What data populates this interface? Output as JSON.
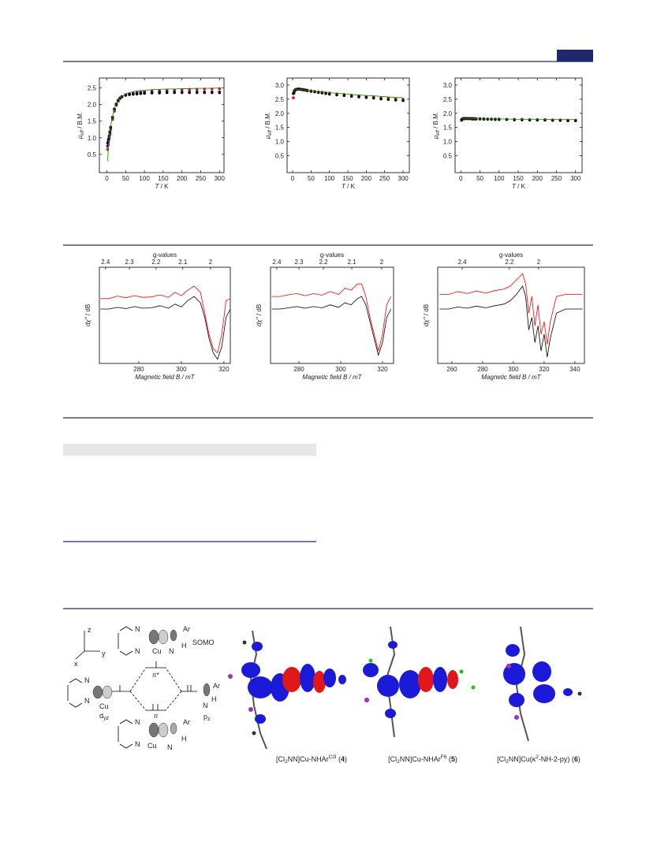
{
  "chart_data": [
    {
      "type": "scatter",
      "xlabel": [
        "T",
        " / K"
      ],
      "ylabel": [
        "μ",
        "eff",
        " / B.M."
      ],
      "x": [
        2,
        4,
        6,
        8,
        10,
        15,
        20,
        25,
        30,
        35,
        40,
        50,
        60,
        70,
        80,
        90,
        100,
        120,
        140,
        160,
        180,
        200,
        220,
        240,
        260,
        280,
        300
      ],
      "xlim": [
        -20,
        312
      ],
      "xticks": [
        0,
        50,
        100,
        150,
        200,
        250,
        300
      ],
      "ylim": [
        -0.05,
        2.8
      ],
      "yticks": [
        0.5,
        {
          "value": 1,
          "label": "1.0"
        },
        1.5,
        {
          "value": 2,
          "label": "2.0"
        },
        2.5
      ],
      "series": [
        {
          "kind": "points",
          "color": "#ff0000",
          "values": [
            0.65,
            0.8,
            0.95,
            1.1,
            1.25,
            1.55,
            1.8,
            1.98,
            2.1,
            2.18,
            2.23,
            2.3,
            2.33,
            2.35,
            2.37,
            2.38,
            2.39,
            2.41,
            2.42,
            2.43,
            2.44,
            2.45,
            2.46,
            2.46,
            2.47,
            2.47,
            2.48
          ]
        },
        {
          "kind": "points",
          "color": "#0000ff",
          "values": [
            0.75,
            0.88,
            1.0,
            1.15,
            1.3,
            1.6,
            1.85,
            2.0,
            2.12,
            2.2,
            2.24,
            2.29,
            2.31,
            2.33,
            2.34,
            2.35,
            2.36,
            2.37,
            2.38,
            2.38,
            2.38,
            2.38,
            2.38,
            2.38,
            2.38,
            2.38,
            2.38
          ]
        },
        {
          "kind": "points",
          "color": "#000000",
          "values": [
            0.85,
            0.95,
            1.05,
            1.18,
            1.32,
            1.62,
            1.87,
            2.02,
            2.13,
            2.2,
            2.24,
            2.28,
            2.3,
            2.31,
            2.32,
            2.33,
            2.34,
            2.35,
            2.35,
            2.36,
            2.36,
            2.36,
            2.36,
            2.36,
            2.36,
            2.36,
            2.36
          ]
        },
        {
          "kind": "line",
          "color": "#00a000",
          "values": [
            0.3,
            0.7,
            1.0,
            1.2,
            1.35,
            1.65,
            1.88,
            2.03,
            2.13,
            2.2,
            2.25,
            2.32,
            2.36,
            2.39,
            2.41,
            2.42,
            2.43,
            2.45,
            2.46,
            2.47,
            2.47,
            2.48,
            2.48,
            2.49,
            2.49,
            2.49,
            2.5
          ]
        }
      ]
    },
    {
      "type": "scatter",
      "xlabel": [
        "T",
        " / K"
      ],
      "ylabel": [
        "μ",
        "eff",
        " / B.M."
      ],
      "x": [
        2,
        4,
        6,
        8,
        10,
        15,
        20,
        25,
        30,
        35,
        40,
        50,
        60,
        70,
        80,
        90,
        100,
        120,
        140,
        160,
        180,
        200,
        220,
        240,
        260,
        280,
        300
      ],
      "xlim": [
        -15,
        317
      ],
      "xticks": [
        0,
        50,
        100,
        150,
        200,
        250,
        300
      ],
      "ylim": [
        -0.1,
        3.25
      ],
      "yticks": [
        0.5,
        {
          "value": 1,
          "label": "1.0"
        },
        1.5,
        {
          "value": 2,
          "label": "2.0"
        },
        2.5,
        {
          "value": 3,
          "label": "3.0"
        }
      ],
      "series": [
        {
          "kind": "points",
          "color": "#ff0000",
          "values": [
            2.55,
            2.72,
            2.8,
            2.83,
            2.85,
            2.86,
            2.86,
            2.85,
            2.84,
            2.83,
            2.82,
            2.8,
            2.78,
            2.76,
            2.75,
            2.73,
            2.72,
            2.69,
            2.67,
            2.64,
            2.62,
            2.6,
            2.58,
            2.56,
            2.54,
            2.52,
            2.5
          ]
        },
        {
          "kind": "points",
          "color": "#000000",
          "values": [
            2.7,
            2.78,
            2.82,
            2.84,
            2.85,
            2.86,
            2.85,
            2.84,
            2.83,
            2.82,
            2.8,
            2.78,
            2.76,
            2.74,
            2.72,
            2.7,
            2.68,
            2.65,
            2.63,
            2.6,
            2.58,
            2.56,
            2.54,
            2.51,
            2.49,
            2.47,
            2.45
          ]
        },
        {
          "kind": "line",
          "color": "#00a000",
          "values": [
            2.75,
            2.8,
            2.83,
            2.84,
            2.85,
            2.85,
            2.85,
            2.84,
            2.83,
            2.82,
            2.81,
            2.8,
            2.79,
            2.77,
            2.76,
            2.75,
            2.73,
            2.71,
            2.69,
            2.67,
            2.65,
            2.63,
            2.62,
            2.6,
            2.58,
            2.56,
            2.55
          ]
        }
      ]
    },
    {
      "type": "scatter",
      "xlabel": [
        "T",
        " / K"
      ],
      "ylabel": [
        "μ",
        "eff",
        " / B.M."
      ],
      "x": [
        2,
        4,
        6,
        8,
        10,
        15,
        20,
        25,
        30,
        35,
        40,
        50,
        60,
        70,
        80,
        90,
        100,
        120,
        140,
        160,
        180,
        200,
        220,
        240,
        260,
        280,
        300
      ],
      "xlim": [
        -15,
        317
      ],
      "xticks": [
        0,
        50,
        100,
        150,
        200,
        250,
        300
      ],
      "ylim": [
        -0.1,
        3.25
      ],
      "yticks": [
        0.5,
        {
          "value": 1,
          "label": "1.0"
        },
        1.5,
        {
          "value": 2,
          "label": "2.0"
        },
        2.5,
        {
          "value": 3,
          "label": "3.0"
        }
      ],
      "series": [
        {
          "kind": "points",
          "color": "#ff0000",
          "values": [
            1.75,
            1.8,
            1.81,
            1.82,
            1.82,
            1.82,
            1.82,
            1.82,
            1.82,
            1.82,
            1.81,
            1.81,
            1.81,
            1.8,
            1.8,
            1.8,
            1.8,
            1.79,
            1.79,
            1.79,
            1.78,
            1.78,
            1.78,
            1.77,
            1.77,
            1.76,
            1.76
          ]
        },
        {
          "kind": "points",
          "color": "#000000",
          "values": [
            1.78,
            1.8,
            1.81,
            1.81,
            1.81,
            1.81,
            1.81,
            1.81,
            1.8,
            1.8,
            1.8,
            1.8,
            1.79,
            1.79,
            1.79,
            1.78,
            1.78,
            1.78,
            1.77,
            1.77,
            1.76,
            1.76,
            1.76,
            1.75,
            1.75,
            1.74,
            1.74
          ]
        },
        {
          "kind": "line",
          "color": "#00a000",
          "values": [
            1.8,
            1.8,
            1.81,
            1.81,
            1.81,
            1.81,
            1.81,
            1.81,
            1.81,
            1.81,
            1.81,
            1.8,
            1.8,
            1.8,
            1.8,
            1.8,
            1.8,
            1.8,
            1.79,
            1.79,
            1.79,
            1.79,
            1.79,
            1.78,
            1.78,
            1.78,
            1.78
          ]
        }
      ]
    },
    {
      "type": "line",
      "xlabel": "Magnetic field B / mT",
      "ylabel": [
        "dχ''",
        " / dB"
      ],
      "x2label": "g-values",
      "x": [
        262,
        266,
        270,
        274,
        278,
        282,
        286,
        290,
        294,
        297,
        300,
        303,
        306,
        309,
        311,
        313,
        315,
        317,
        319,
        321,
        323
      ],
      "xlim": [
        261.5,
        323
      ],
      "xticks": [
        280,
        300,
        320
      ],
      "x2ticks": [
        {
          "value": 264.4,
          "label": "2.4"
        },
        {
          "value": 275.6,
          "label": "2.3"
        },
        {
          "value": 288.1,
          "label": "2.2"
        },
        {
          "value": 300.7,
          "label": "2.1"
        },
        {
          "value": 313.7,
          "label": "2"
        }
      ],
      "ylim": [
        -1.3,
        1.0
      ],
      "series": [
        {
          "kind": "line",
          "color": "#000000",
          "values": [
            0,
            0,
            0.04,
            0.01,
            0.06,
            0.02,
            0.03,
            0.08,
            0.02,
            0.12,
            0.05,
            0.2,
            0.3,
            0.15,
            -0.2,
            -0.7,
            -1.05,
            -1.2,
            -0.9,
            -0.2,
            0
          ]
        },
        {
          "kind": "line",
          "color": "#ff0000",
          "values": [
            0.25,
            0.25,
            0.31,
            0.27,
            0.32,
            0.28,
            0.29,
            0.34,
            0.28,
            0.4,
            0.32,
            0.45,
            0.55,
            0.4,
            -0.1,
            -0.6,
            -0.95,
            -1.05,
            -0.6,
            0.2,
            0.25
          ]
        }
      ]
    },
    {
      "type": "line",
      "xlabel": "Magnetic field B / mT",
      "ylabel": [
        "dχ''",
        " / dB"
      ],
      "x2label": "g-values",
      "x": [
        267,
        271,
        275,
        279,
        283,
        287,
        291,
        295,
        299,
        302,
        305,
        308,
        310,
        312,
        314,
        316,
        318,
        320,
        322,
        324
      ],
      "xlim": [
        266.4,
        325.3
      ],
      "xticks": [
        280,
        300,
        320
      ],
      "x2ticks": [
        {
          "value": 269.4,
          "label": "2.4"
        },
        {
          "value": 280,
          "label": "2.3"
        },
        {
          "value": 291.7,
          "label": "2.2"
        },
        {
          "value": 305.3,
          "label": "2.1"
        },
        {
          "value": 319.6,
          "label": "2"
        }
      ],
      "ylim": [
        -1.3,
        1.0
      ],
      "series": [
        {
          "kind": "line",
          "color": "#000000",
          "values": [
            0,
            0,
            0.03,
            0.06,
            0.02,
            0.06,
            0.03,
            0.1,
            0.04,
            0.15,
            0.1,
            0.25,
            0.3,
            0.1,
            -0.3,
            -0.7,
            -1.1,
            -0.8,
            -0.2,
            0
          ]
        },
        {
          "kind": "line",
          "color": "#ff0000",
          "values": [
            0.3,
            0.3,
            0.34,
            0.37,
            0.32,
            0.37,
            0.33,
            0.42,
            0.35,
            0.5,
            0.45,
            0.6,
            0.6,
            0.3,
            -0.2,
            -0.6,
            -1.0,
            -0.6,
            0.1,
            0.3
          ]
        }
      ]
    },
    {
      "type": "line",
      "xlabel": "Magnetic field B / mT",
      "ylabel": [
        "dχ''",
        " / dB"
      ],
      "x2label": "g-values",
      "x": [
        252,
        258,
        264,
        270,
        276,
        282,
        288,
        294,
        298,
        302,
        306,
        308,
        310,
        312,
        314,
        316,
        318,
        320,
        322,
        324,
        328,
        334,
        340,
        345
      ],
      "xlim": [
        250.8,
        346.2
      ],
      "xticks": [
        260,
        280,
        300,
        320,
        340
      ],
      "x2ticks": [
        {
          "value": 266.7,
          "label": "2.4"
        },
        {
          "value": 297.4,
          "label": "2.2"
        },
        {
          "value": 316.4,
          "label": "2"
        }
      ],
      "ylim": [
        -1.3,
        1.0
      ],
      "series": [
        {
          "kind": "line",
          "color": "#000000",
          "values": [
            0,
            0,
            0.05,
            0.02,
            0.07,
            0.03,
            0.08,
            0.12,
            0.2,
            0.35,
            0.55,
            0.3,
            -0.5,
            -0.2,
            -0.8,
            -0.4,
            -1.0,
            -0.6,
            -1.15,
            -0.7,
            -0.1,
            0,
            0,
            0
          ]
        },
        {
          "kind": "line",
          "color": "#ff0000",
          "values": [
            0.35,
            0.35,
            0.42,
            0.37,
            0.43,
            0.38,
            0.44,
            0.48,
            0.55,
            0.7,
            0.85,
            0.6,
            -0.1,
            0.3,
            -0.4,
            0.1,
            -0.6,
            -0.3,
            -0.85,
            -0.3,
            0.3,
            0.35,
            0.35,
            0.35
          ]
        }
      ]
    }
  ],
  "scheme": {
    "labels": [
      "z",
      "y",
      "x",
      "N",
      "N",
      "Cu",
      "N",
      "Ar",
      "H",
      "SOMO",
      "N",
      "N",
      "Cu",
      "d",
      "yz",
      "π*",
      "π",
      "Ar",
      "N",
      "H",
      "p",
      "z",
      "N",
      "N",
      "Cu",
      "N",
      "Ar",
      "H"
    ]
  },
  "captions": [
    [
      "[Cl",
      "2",
      "NN]Cu-NHAr",
      "Cl3",
      " (",
      "4",
      ")"
    ],
    [
      "[Cl",
      "2",
      "NN]Cu-NHAr",
      "F6",
      " (",
      "5",
      ")"
    ],
    [
      "[Cl",
      "2",
      "NN]Cu(κ",
      "2",
      "-NH-2-py) (",
      "6",
      ")"
    ]
  ]
}
